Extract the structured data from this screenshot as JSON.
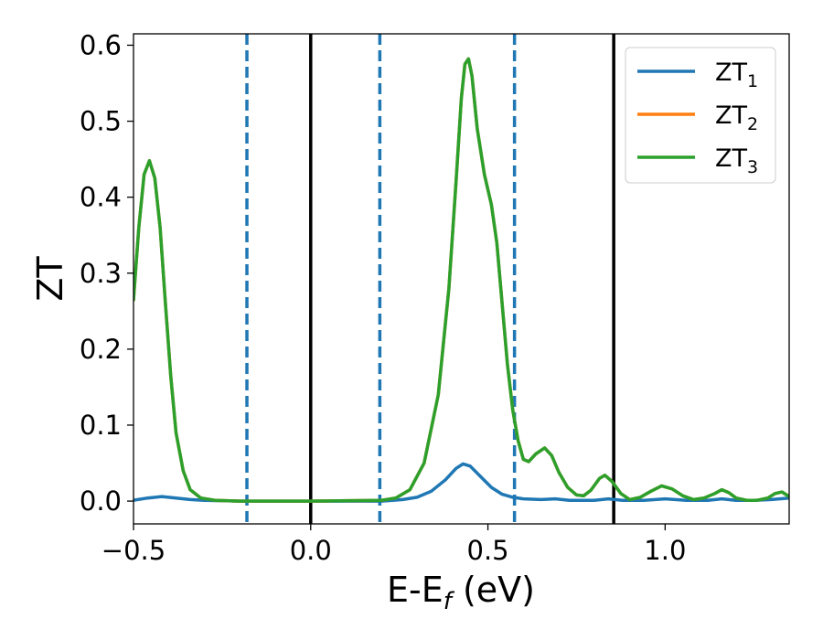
{
  "chart_data": {
    "type": "line",
    "xlabel": {
      "main": "E-E",
      "sub": "f",
      "unit": " (eV)"
    },
    "ylabel": "ZT",
    "xlim": [
      -0.5,
      1.35
    ],
    "ylim": [
      -0.03,
      0.615
    ],
    "xticks": [
      {
        "value": -0.5,
        "label": "−0.5"
      },
      {
        "value": 0.0,
        "label": "0.0"
      },
      {
        "value": 0.5,
        "label": "0.5"
      },
      {
        "value": 1.0,
        "label": "1.0"
      }
    ],
    "yticks": [
      {
        "value": 0.0,
        "label": "0.0"
      },
      {
        "value": 0.1,
        "label": "0.1"
      },
      {
        "value": 0.2,
        "label": "0.2"
      },
      {
        "value": 0.3,
        "label": "0.3"
      },
      {
        "value": 0.4,
        "label": "0.4"
      },
      {
        "value": 0.5,
        "label": "0.5"
      },
      {
        "value": 0.6,
        "label": "0.6"
      }
    ],
    "grid": false,
    "legend_position": "top-right",
    "vlines": [
      {
        "x": -0.18,
        "style": "dashed",
        "color": "#1f77b4"
      },
      {
        "x": 0.0,
        "style": "solid",
        "color": "#000000"
      },
      {
        "x": 0.195,
        "style": "dashed",
        "color": "#1f77b4"
      },
      {
        "x": 0.575,
        "style": "dashed",
        "color": "#1f77b4"
      },
      {
        "x": 0.855,
        "style": "solid",
        "color": "#000000"
      }
    ],
    "series": [
      {
        "name": "ZT",
        "sub": "1",
        "color": "#1f77b4",
        "points": [
          [
            -0.5,
            0.001
          ],
          [
            -0.46,
            0.004
          ],
          [
            -0.42,
            0.006
          ],
          [
            -0.38,
            0.004
          ],
          [
            -0.34,
            0.002
          ],
          [
            -0.3,
            0.001
          ],
          [
            -0.2,
            0.0
          ],
          [
            0.0,
            0.0
          ],
          [
            0.2,
            0.0
          ],
          [
            0.26,
            0.002
          ],
          [
            0.3,
            0.005
          ],
          [
            0.34,
            0.013
          ],
          [
            0.38,
            0.028
          ],
          [
            0.41,
            0.043
          ],
          [
            0.43,
            0.049
          ],
          [
            0.45,
            0.046
          ],
          [
            0.48,
            0.032
          ],
          [
            0.51,
            0.018
          ],
          [
            0.54,
            0.009
          ],
          [
            0.57,
            0.005
          ],
          [
            0.6,
            0.003
          ],
          [
            0.65,
            0.002
          ],
          [
            0.69,
            0.003
          ],
          [
            0.73,
            0.001
          ],
          [
            0.8,
            0.001
          ],
          [
            0.84,
            0.003
          ],
          [
            0.88,
            0.001
          ],
          [
            0.94,
            0.001
          ],
          [
            1.0,
            0.003
          ],
          [
            1.06,
            0.001
          ],
          [
            1.12,
            0.001
          ],
          [
            1.16,
            0.003
          ],
          [
            1.2,
            0.001
          ],
          [
            1.25,
            0.001
          ],
          [
            1.3,
            0.002
          ],
          [
            1.35,
            0.004
          ]
        ]
      },
      {
        "name": "ZT",
        "sub": "2",
        "color": "#ff7f0e",
        "points": [
          [
            -0.5,
            0.265
          ],
          [
            -0.485,
            0.36
          ],
          [
            -0.47,
            0.43
          ],
          [
            -0.455,
            0.448
          ],
          [
            -0.44,
            0.425
          ],
          [
            -0.425,
            0.36
          ],
          [
            -0.41,
            0.26
          ],
          [
            -0.395,
            0.165
          ],
          [
            -0.38,
            0.09
          ],
          [
            -0.36,
            0.04
          ],
          [
            -0.34,
            0.015
          ],
          [
            -0.31,
            0.004
          ],
          [
            -0.27,
            0.001
          ],
          [
            -0.2,
            0.0
          ],
          [
            0.0,
            0.0
          ],
          [
            0.2,
            0.001
          ],
          [
            0.24,
            0.004
          ],
          [
            0.28,
            0.015
          ],
          [
            0.32,
            0.05
          ],
          [
            0.36,
            0.14
          ],
          [
            0.39,
            0.28
          ],
          [
            0.41,
            0.42
          ],
          [
            0.425,
            0.53
          ],
          [
            0.435,
            0.575
          ],
          [
            0.445,
            0.582
          ],
          [
            0.455,
            0.56
          ],
          [
            0.47,
            0.49
          ],
          [
            0.49,
            0.43
          ],
          [
            0.51,
            0.39
          ],
          [
            0.525,
            0.34
          ],
          [
            0.54,
            0.26
          ],
          [
            0.555,
            0.18
          ],
          [
            0.57,
            0.12
          ],
          [
            0.585,
            0.08
          ],
          [
            0.6,
            0.055
          ],
          [
            0.615,
            0.052
          ],
          [
            0.635,
            0.062
          ],
          [
            0.66,
            0.07
          ],
          [
            0.68,
            0.06
          ],
          [
            0.7,
            0.038
          ],
          [
            0.725,
            0.018
          ],
          [
            0.75,
            0.008
          ],
          [
            0.77,
            0.007
          ],
          [
            0.79,
            0.014
          ],
          [
            0.815,
            0.03
          ],
          [
            0.83,
            0.034
          ],
          [
            0.85,
            0.026
          ],
          [
            0.875,
            0.01
          ],
          [
            0.9,
            0.002
          ],
          [
            0.93,
            0.005
          ],
          [
            0.96,
            0.013
          ],
          [
            0.99,
            0.02
          ],
          [
            1.02,
            0.016
          ],
          [
            1.05,
            0.007
          ],
          [
            1.08,
            0.002
          ],
          [
            1.11,
            0.004
          ],
          [
            1.14,
            0.01
          ],
          [
            1.16,
            0.015
          ],
          [
            1.18,
            0.011
          ],
          [
            1.2,
            0.004
          ],
          [
            1.23,
            0.001
          ],
          [
            1.26,
            0.001
          ],
          [
            1.29,
            0.004
          ],
          [
            1.31,
            0.01
          ],
          [
            1.33,
            0.012
          ],
          [
            1.35,
            0.006
          ]
        ]
      },
      {
        "name": "ZT",
        "sub": "3",
        "color": "#2ca02c",
        "points": [
          [
            -0.5,
            0.265
          ],
          [
            -0.485,
            0.36
          ],
          [
            -0.47,
            0.43
          ],
          [
            -0.455,
            0.448
          ],
          [
            -0.44,
            0.425
          ],
          [
            -0.425,
            0.36
          ],
          [
            -0.41,
            0.26
          ],
          [
            -0.395,
            0.165
          ],
          [
            -0.38,
            0.09
          ],
          [
            -0.36,
            0.04
          ],
          [
            -0.34,
            0.015
          ],
          [
            -0.31,
            0.004
          ],
          [
            -0.27,
            0.001
          ],
          [
            -0.2,
            0.0
          ],
          [
            0.0,
            0.0
          ],
          [
            0.2,
            0.001
          ],
          [
            0.24,
            0.004
          ],
          [
            0.28,
            0.015
          ],
          [
            0.32,
            0.05
          ],
          [
            0.36,
            0.14
          ],
          [
            0.39,
            0.28
          ],
          [
            0.41,
            0.42
          ],
          [
            0.425,
            0.53
          ],
          [
            0.435,
            0.575
          ],
          [
            0.445,
            0.582
          ],
          [
            0.455,
            0.56
          ],
          [
            0.47,
            0.49
          ],
          [
            0.49,
            0.43
          ],
          [
            0.51,
            0.39
          ],
          [
            0.525,
            0.34
          ],
          [
            0.54,
            0.26
          ],
          [
            0.555,
            0.18
          ],
          [
            0.57,
            0.12
          ],
          [
            0.585,
            0.08
          ],
          [
            0.6,
            0.055
          ],
          [
            0.615,
            0.052
          ],
          [
            0.635,
            0.062
          ],
          [
            0.66,
            0.07
          ],
          [
            0.68,
            0.06
          ],
          [
            0.7,
            0.038
          ],
          [
            0.725,
            0.018
          ],
          [
            0.75,
            0.008
          ],
          [
            0.77,
            0.007
          ],
          [
            0.79,
            0.014
          ],
          [
            0.815,
            0.03
          ],
          [
            0.83,
            0.034
          ],
          [
            0.85,
            0.026
          ],
          [
            0.875,
            0.01
          ],
          [
            0.9,
            0.002
          ],
          [
            0.93,
            0.005
          ],
          [
            0.96,
            0.013
          ],
          [
            0.99,
            0.02
          ],
          [
            1.02,
            0.016
          ],
          [
            1.05,
            0.007
          ],
          [
            1.08,
            0.002
          ],
          [
            1.11,
            0.004
          ],
          [
            1.14,
            0.01
          ],
          [
            1.16,
            0.015
          ],
          [
            1.18,
            0.011
          ],
          [
            1.2,
            0.004
          ],
          [
            1.23,
            0.001
          ],
          [
            1.26,
            0.001
          ],
          [
            1.29,
            0.004
          ],
          [
            1.31,
            0.01
          ],
          [
            1.33,
            0.012
          ],
          [
            1.35,
            0.006
          ]
        ]
      }
    ]
  }
}
